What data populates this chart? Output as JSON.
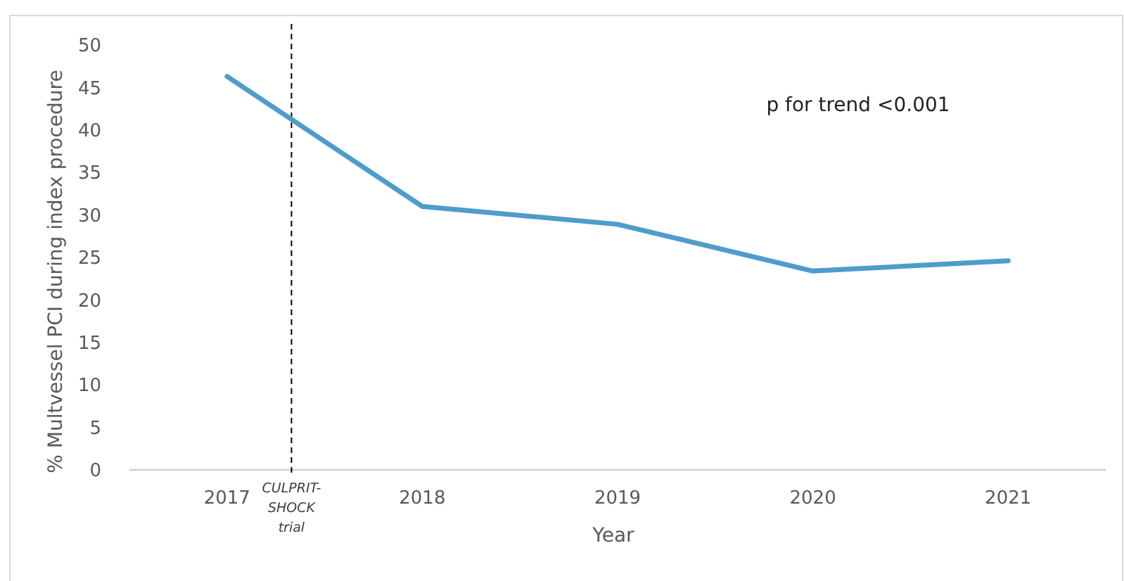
{
  "chart_data": {
    "type": "line",
    "xlabel": "Year",
    "ylabel": "% Multvessel PCI during index procedure",
    "x": [
      2017,
      2018,
      2019,
      2020,
      2021
    ],
    "series": [
      {
        "color": "#4e9ccc",
        "values": [
          46.3,
          31.0,
          28.9,
          23.4,
          24.6
        ]
      }
    ],
    "xlim": [
      2016.5,
      2021.5
    ],
    "xticks": [
      2017,
      2018,
      2019,
      2020,
      2021
    ],
    "ylim": [
      0,
      50
    ],
    "yticks": [
      0,
      5,
      10,
      15,
      20,
      25,
      30,
      35,
      40,
      45,
      50
    ],
    "grid": false,
    "marker": "none",
    "line_style": "solid",
    "ref_lines": [
      {
        "axis": "x",
        "value": 2017.33,
        "label": "CULPRIT-SHOCK trial",
        "color": "#000000",
        "line_style": "dashed"
      }
    ],
    "annotations": [
      "p for trend <0.001"
    ]
  }
}
